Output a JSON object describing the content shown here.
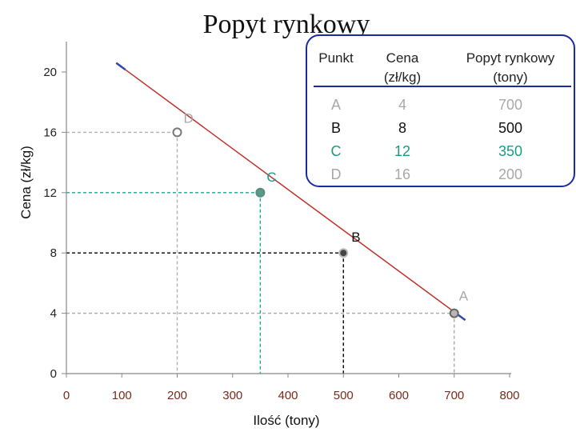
{
  "chart_data": {
    "type": "line",
    "title": "Popyt rynkowy",
    "xlabel": "Ilość (tony)",
    "ylabel": "Cena (zł/kg)",
    "xlim": [
      0,
      800
    ],
    "ylim": [
      0,
      20
    ],
    "xticks": [
      0,
      100,
      200,
      300,
      400,
      500,
      600,
      700,
      800
    ],
    "yticks": [
      0,
      4,
      8,
      12,
      16,
      20
    ],
    "demand_line": {
      "x": [
        90,
        720
      ],
      "y": [
        20.6,
        3.55
      ],
      "color": "#c0302a"
    },
    "points": [
      {
        "label": "A",
        "x": 700,
        "y": 4,
        "color": "#a8a8a8",
        "guide_color": "#a8a8a8"
      },
      {
        "label": "B",
        "x": 500,
        "y": 8,
        "color": "#111111",
        "guide_color": "#000000"
      },
      {
        "label": "C",
        "x": 350,
        "y": 12,
        "color": "#1a9a84",
        "guide_color": "#1aa88c"
      },
      {
        "label": "D",
        "x": 200,
        "y": 16,
        "color": "#a8a8a8",
        "guide_color": "#b0b0b0"
      }
    ],
    "table": {
      "headers": [
        "Punkt",
        "Cena\n(zł/kg)",
        "Popyt rynkowy\n(tony)"
      ],
      "rows": [
        {
          "punkt": "A",
          "cena": "4",
          "popyt": "700",
          "color": "#a8a8a8"
        },
        {
          "punkt": "B",
          "cena": "8",
          "popyt": "500",
          "color": "#111111"
        },
        {
          "punkt": "C",
          "cena": "12",
          "popyt": "350",
          "color": "#1a9a84"
        },
        {
          "punkt": "D",
          "cena": "16",
          "popyt": "200",
          "color": "#a8a8a8"
        }
      ],
      "border_color": "#1a2aa0"
    }
  }
}
